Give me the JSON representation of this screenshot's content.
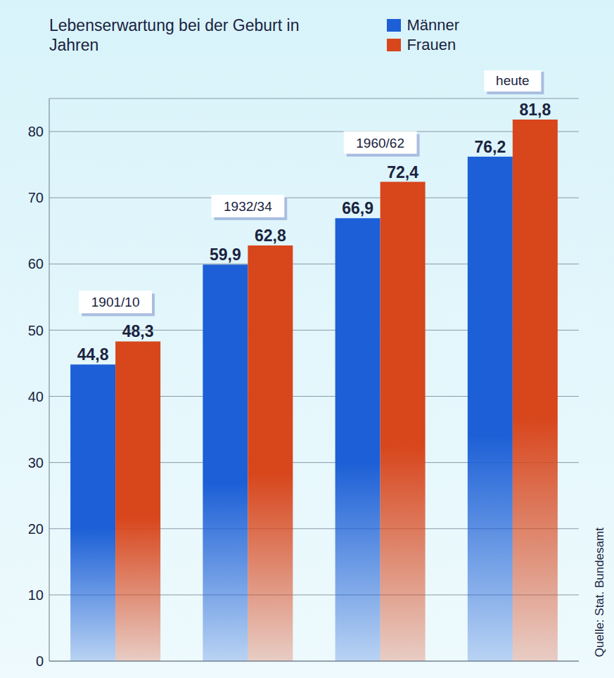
{
  "chart_data": {
    "type": "bar",
    "title": "Lebenserwartung bei der Geburt in Jahren",
    "source": "Quelle: Stat. Bundesamt",
    "categories": [
      "1901/10",
      "1932/34",
      "1960/62",
      "heute"
    ],
    "series": [
      {
        "name": "Männer",
        "color": "#1c5fd6",
        "values": [
          44.8,
          59.9,
          66.9,
          76.2
        ],
        "value_labels": [
          "44,8",
          "59,9",
          "66,9",
          "76,2"
        ]
      },
      {
        "name": "Frauen",
        "color": "#d8461c",
        "values": [
          48.3,
          62.8,
          72.4,
          81.8
        ],
        "value_labels": [
          "48,3",
          "62,8",
          "72,4",
          "81,8"
        ]
      }
    ],
    "ylim": [
      0,
      85
    ],
    "yticks": [
      0,
      10,
      20,
      30,
      40,
      50,
      60,
      70,
      80
    ],
    "grid": true,
    "legend": "top-right",
    "data_labels": true,
    "tick_labels": "y"
  }
}
